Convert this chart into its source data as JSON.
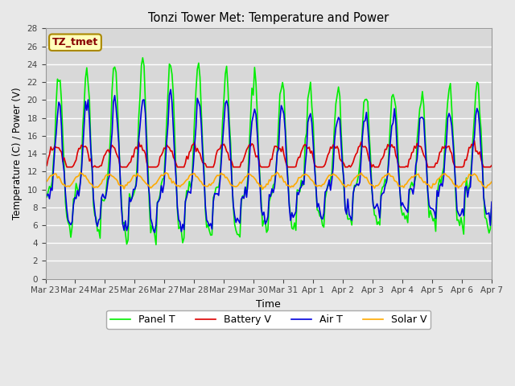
{
  "title": "Tonzi Tower Met: Temperature and Power",
  "xlabel": "Time",
  "ylabel": "Temperature (C) / Power (V)",
  "ylim": [
    0,
    28
  ],
  "yticks": [
    0,
    2,
    4,
    6,
    8,
    10,
    12,
    14,
    16,
    18,
    20,
    22,
    24,
    26,
    28
  ],
  "xtick_labels": [
    "Mar 23",
    "Mar 24",
    "Mar 25",
    "Mar 26",
    "Mar 27",
    "Mar 28",
    "Mar 29",
    "Mar 30",
    "Mar 31",
    "Apr 1",
    "Apr 2",
    "Apr 3",
    "Apr 4",
    "Apr 5",
    "Apr 6",
    "Apr 7"
  ],
  "annotation_text": "TZ_tmet",
  "fig_bg_color": "#e8e8e8",
  "plot_bg_color": "#d8d8d8",
  "grid_color": "#ffffff",
  "colors": {
    "panel_t": "#00ee00",
    "battery_v": "#dd0000",
    "air_t": "#0000dd",
    "solar_v": "#ffaa00"
  },
  "legend_labels": [
    "Panel T",
    "Battery V",
    "Air T",
    "Solar V"
  ],
  "linewidth": 1.2,
  "n_points": 336
}
